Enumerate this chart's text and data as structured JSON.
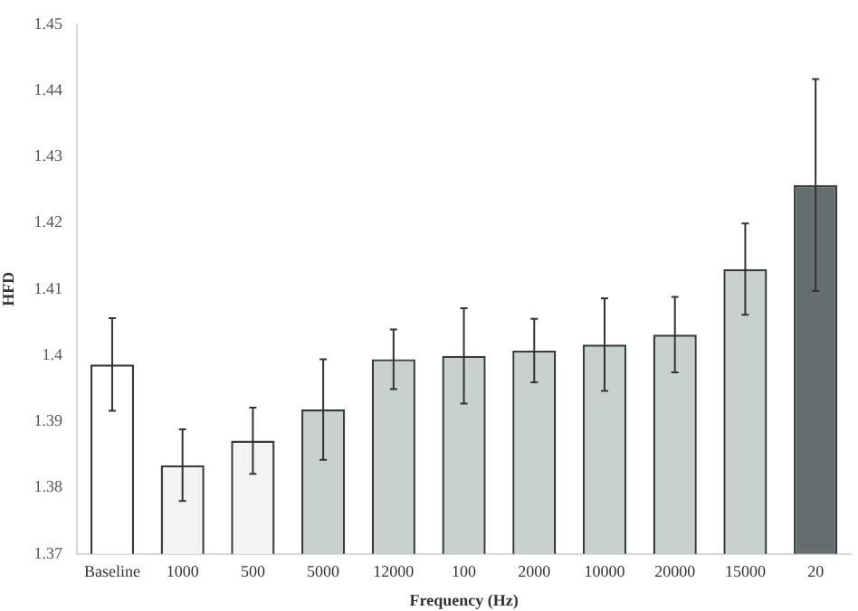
{
  "chart_data": {
    "type": "bar",
    "xlabel": "Frequency (Hz)",
    "ylabel": "HFD",
    "categories": [
      "Baseline",
      "1000",
      "500",
      "5000",
      "12000",
      "100",
      "2000",
      "10000",
      "20000",
      "15000",
      "20"
    ],
    "values": [
      1.3986,
      1.3834,
      1.3871,
      1.3918,
      1.3994,
      1.3999,
      1.4007,
      1.4016,
      1.4031,
      1.413,
      1.4257
    ],
    "errors": [
      0.007,
      0.0054,
      0.005,
      0.0076,
      0.0045,
      0.0072,
      0.0048,
      0.007,
      0.0057,
      0.0069,
      0.016
    ],
    "colors": [
      "#ffffff",
      "#f2f3f3",
      "#f2f3f3",
      "#c9d1cf",
      "#c9d1cf",
      "#c9d1cf",
      "#c9d1cf",
      "#c9d1cf",
      "#c9d1cf",
      "#c9d1cf",
      "#676e6e"
    ],
    "ylim": [
      1.37,
      1.45
    ],
    "yticks": [
      1.37,
      1.38,
      1.39,
      1.4,
      1.41,
      1.42,
      1.43,
      1.44,
      1.45
    ],
    "grid": false,
    "legend": false
  }
}
